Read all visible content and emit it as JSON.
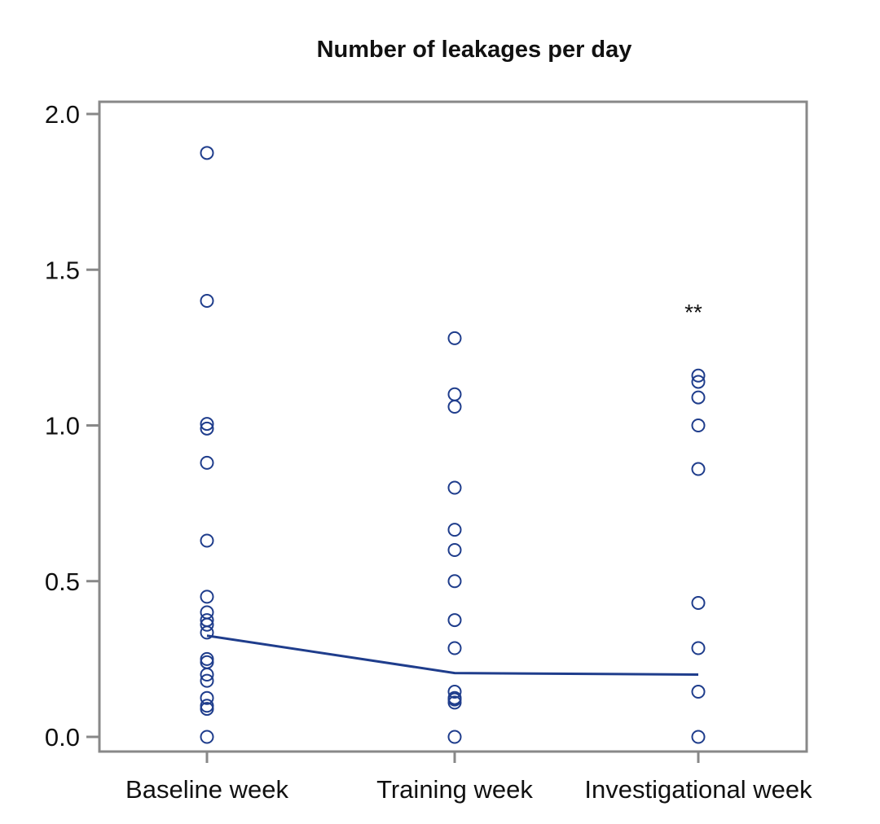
{
  "chart_data": {
    "type": "scatter",
    "title": "Number of leakages per day",
    "xlabel": "",
    "ylabel": "",
    "categories": [
      "Baseline week",
      "Training week",
      "Investigational week"
    ],
    "ylim": [
      0.0,
      2.0
    ],
    "yticks": [
      "0.0",
      "0.5",
      "1.0",
      "1.5",
      "2.0"
    ],
    "grid": false,
    "series": [
      {
        "category": "Baseline week",
        "values": [
          1.875,
          1.4,
          1.005,
          0.99,
          0.88,
          0.63,
          0.45,
          0.4,
          0.375,
          0.36,
          0.335,
          0.25,
          0.24,
          0.2,
          0.18,
          0.125,
          0.1,
          0.09,
          0.0
        ]
      },
      {
        "category": "Training week",
        "values": [
          1.28,
          1.1,
          1.06,
          0.8,
          0.665,
          0.6,
          0.5,
          0.375,
          0.285,
          0.145,
          0.125,
          0.12,
          0.11,
          0.0
        ]
      },
      {
        "category": "Investigational week",
        "values": [
          1.16,
          1.14,
          1.09,
          1.0,
          0.86,
          0.43,
          0.285,
          0.145,
          0.0
        ]
      }
    ],
    "median_line": [
      0.325,
      0.205,
      0.2
    ],
    "annotations": [
      {
        "category": "Investigational week",
        "y": 1.38,
        "text": "**"
      }
    ],
    "colors": {
      "marker": "#1f3d8c",
      "line": "#1f3d8c",
      "axis": "#888888",
      "text": "#111111"
    }
  }
}
